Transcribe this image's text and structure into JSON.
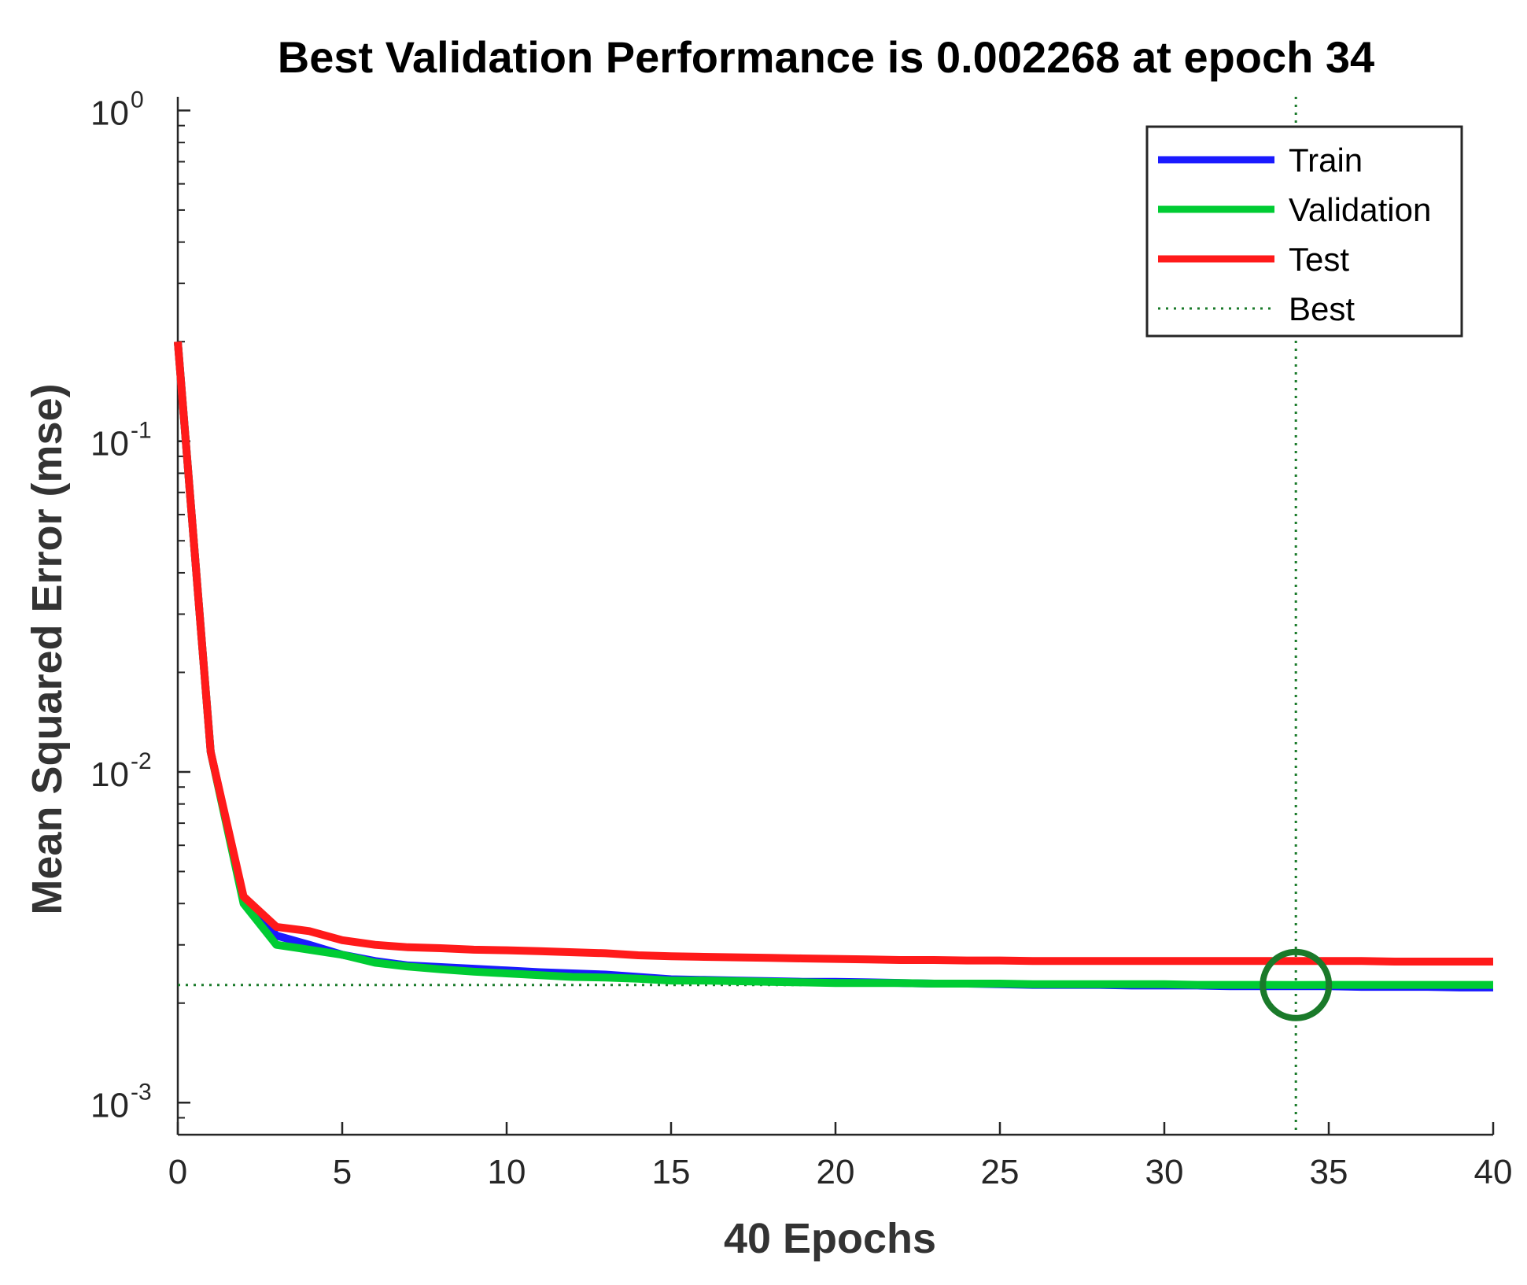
{
  "chart_data": {
    "type": "line",
    "title": "Best Validation Performance is 0.002268 at epoch 34",
    "xlabel": "40 Epochs",
    "ylabel": "Mean Squared Error  (mse)",
    "yscale": "log",
    "xlim": [
      0,
      40
    ],
    "ylim": [
      0.0008,
      1.1
    ],
    "x_ticks": [
      "0",
      "5",
      "10",
      "15",
      "20",
      "25",
      "30",
      "35",
      "40"
    ],
    "y_ticks": [
      {
        "base": "10",
        "exp": "0"
      },
      {
        "base": "10",
        "exp": "-1"
      },
      {
        "base": "10",
        "exp": "-2"
      },
      {
        "base": "10",
        "exp": "-3"
      }
    ],
    "legend_position": "top-right",
    "series": [
      {
        "name": "Train",
        "color": "#1a1aff",
        "x": [
          0,
          1,
          2,
          3,
          4,
          5,
          6,
          7,
          8,
          9,
          10,
          11,
          12,
          13,
          14,
          15,
          16,
          17,
          18,
          19,
          20,
          21,
          22,
          23,
          24,
          25,
          26,
          27,
          28,
          29,
          30,
          31,
          32,
          33,
          34,
          35,
          36,
          37,
          38,
          39,
          40
        ],
        "values": [
          0.2,
          0.0115,
          0.0041,
          0.0032,
          0.003,
          0.0028,
          0.00268,
          0.0026,
          0.00257,
          0.00254,
          0.00251,
          0.00248,
          0.00246,
          0.00244,
          0.0024,
          0.00236,
          0.00235,
          0.00234,
          0.00233,
          0.00232,
          0.00232,
          0.00231,
          0.0023,
          0.00229,
          0.00229,
          0.00228,
          0.00227,
          0.00227,
          0.00227,
          0.00226,
          0.00226,
          0.00226,
          0.00225,
          0.00225,
          0.00225,
          0.00225,
          0.00224,
          0.00224,
          0.00224,
          0.00223,
          0.00223
        ]
      },
      {
        "name": "Validation",
        "color": "#00cc33",
        "x": [
          0,
          1,
          2,
          3,
          4,
          5,
          6,
          7,
          8,
          9,
          10,
          11,
          12,
          13,
          14,
          15,
          16,
          17,
          18,
          19,
          20,
          21,
          22,
          23,
          24,
          25,
          26,
          27,
          28,
          29,
          30,
          31,
          32,
          33,
          34,
          35,
          36,
          37,
          38,
          39,
          40
        ],
        "values": [
          0.2,
          0.0115,
          0.004,
          0.003,
          0.0029,
          0.0028,
          0.00265,
          0.00258,
          0.00253,
          0.00249,
          0.00246,
          0.00243,
          0.0024,
          0.00239,
          0.00237,
          0.00234,
          0.00234,
          0.00233,
          0.00232,
          0.00231,
          0.0023,
          0.0023,
          0.0023,
          0.00229,
          0.00229,
          0.00229,
          0.00228,
          0.00228,
          0.00228,
          0.00228,
          0.00228,
          0.00227,
          0.00227,
          0.00227,
          0.002268,
          0.00227,
          0.00227,
          0.00227,
          0.00227,
          0.00227,
          0.00227
        ]
      },
      {
        "name": "Test",
        "color": "#ff1a1a",
        "x": [
          0,
          1,
          2,
          3,
          4,
          5,
          6,
          7,
          8,
          9,
          10,
          11,
          12,
          13,
          14,
          15,
          16,
          17,
          18,
          19,
          20,
          21,
          22,
          23,
          24,
          25,
          26,
          27,
          28,
          29,
          30,
          31,
          32,
          33,
          34,
          35,
          36,
          37,
          38,
          39,
          40
        ],
        "values": [
          0.2,
          0.0115,
          0.0042,
          0.0034,
          0.0033,
          0.0031,
          0.003,
          0.00295,
          0.00293,
          0.0029,
          0.00289,
          0.00287,
          0.00285,
          0.00283,
          0.00279,
          0.00277,
          0.00276,
          0.00275,
          0.00274,
          0.00273,
          0.00272,
          0.00271,
          0.0027,
          0.0027,
          0.00269,
          0.00269,
          0.00268,
          0.00268,
          0.00268,
          0.00268,
          0.00268,
          0.00268,
          0.00268,
          0.00268,
          0.00268,
          0.00268,
          0.00268,
          0.00267,
          0.00267,
          0.00267,
          0.00267
        ]
      }
    ],
    "best": {
      "name": "Best",
      "epoch": 34,
      "value": 0.002268,
      "color": "#1a7a2a"
    }
  }
}
